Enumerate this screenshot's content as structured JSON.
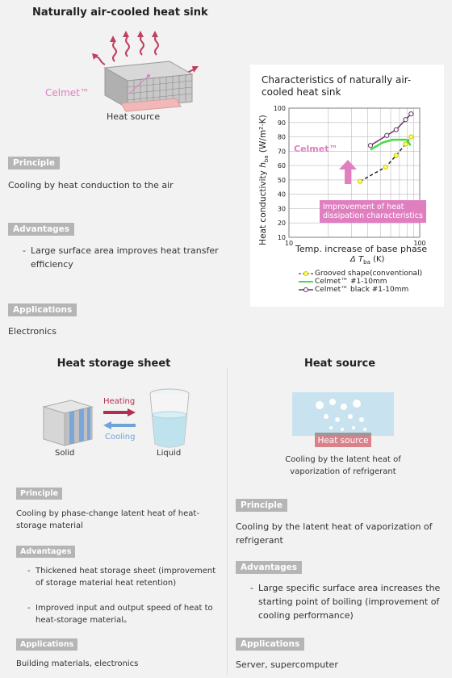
{
  "top": {
    "title": "Naturally air-cooled heat sink",
    "celmet_label": "Celmet™",
    "heat_source_label": "Heat source",
    "principle_tag": "Principle",
    "principle_text": "Cooling by heat conduction to the air",
    "advantages_tag": "Advantages",
    "advantages": [
      "Large surface area improves heat transfer efficiency"
    ],
    "applications_tag": "Applications",
    "applications_text": "Electronics"
  },
  "chart_data": {
    "type": "line",
    "title": "Characteristics of naturally air-cooled heat sink",
    "xlabel": "Temp. increase of base phase",
    "xlabel_sub": "Δ T",
    "xlabel_sub_index": "ba",
    "xlabel_unit": "(K)",
    "ylabel": "Heat conductivity",
    "ylabel_sym": "h",
    "ylabel_sym_index": "ba",
    "ylabel_unit": "(W/m²·K)",
    "xscale": "log",
    "xlim": [
      10,
      100
    ],
    "ylim": [
      10,
      100
    ],
    "x_ticks": [
      "10",
      "100"
    ],
    "y_ticks": [
      "10",
      "20",
      "30",
      "40",
      "50",
      "60",
      "70",
      "80",
      "90",
      "100"
    ],
    "series": [
      {
        "name": "Grooved shape(conventional)",
        "color": "#c8c800",
        "dash": true,
        "x": [
          35,
          55,
          66,
          78,
          86
        ],
        "y": [
          49,
          59,
          67,
          75,
          80
        ]
      },
      {
        "name": "Celmet™ #1-10mm",
        "color": "#44dd44",
        "dash": false,
        "x": [
          42,
          52,
          62,
          72,
          80,
          85
        ],
        "y": [
          71,
          76,
          78,
          78,
          78,
          74
        ]
      },
      {
        "name": "Celmet™ black #1-10mm",
        "color": "#663366",
        "dash": false,
        "x": [
          42,
          56,
          66,
          78,
          86
        ],
        "y": [
          74,
          81,
          85,
          92,
          96
        ]
      }
    ],
    "annotation_celmet": "Celmet™",
    "annotation_improvement": "Improvement of heat dissipation characteristics"
  },
  "left": {
    "title": "Heat storage sheet",
    "heating": "Heating",
    "cooling": "Cooling",
    "solid": "Solid",
    "liquid": "Liquid",
    "principle_tag": "Principle",
    "principle_text": "Cooling by phase-change latent heat of heat-storage material",
    "advantages_tag": "Advantages",
    "advantages": [
      "Thickened heat storage sheet (improvement of storage material heat retention)",
      "Improved input and output speed of heat to heat-storage material。"
    ],
    "applications_tag": "Applications",
    "applications_text": "Building materials, electronics"
  },
  "right": {
    "title": "Heat source",
    "heat_source_label": "Heat source",
    "caption": "Cooling by the latent heat of vaporization of refrigerant",
    "principle_tag": "Principle",
    "principle_text": "Cooling by the latent heat of vaporization of refrigerant",
    "advantages_tag": "Advantages",
    "advantages": [
      "Large specific surface area increases the starting point of boiling (improvement of cooling performance)"
    ],
    "applications_tag": "Applications",
    "applications_text": "Server, supercomputer"
  },
  "colors": {
    "pink": "#e07fc0",
    "heating_arrow": "#b03050",
    "cooling_arrow": "#6fa3d8",
    "tag_bg": "#b5b5b5"
  }
}
